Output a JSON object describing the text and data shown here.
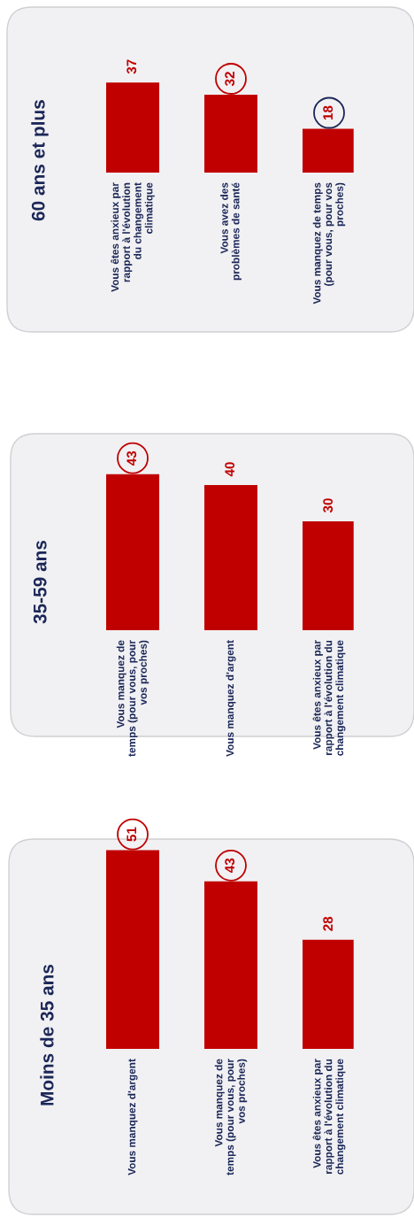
{
  "chart_data": [
    {
      "type": "bar",
      "title": "Moins de 35 ans",
      "categories": [
        "Vous manquez d'argent",
        "Vous manquez de\ntemps (pour vous, pour\nvos proches)",
        "Vous êtes anxieux par\nrapport à l'évolution du\nchangement climatique"
      ],
      "values": [
        51,
        43,
        28
      ],
      "color": "#c00000",
      "data_labels": true
    },
    {
      "type": "bar",
      "title": "35-59 ans",
      "categories": [
        "Vous manquez de\ntemps (pour vous, pour\nvos proches)",
        "Vous manquez d'argent",
        "Vous êtes anxieux par\nrapport à l'évolution du\nchangement climatique"
      ],
      "values": [
        43,
        40,
        30
      ],
      "color": "#c00000",
      "data_labels": true
    },
    {
      "type": "bar",
      "title": "60 ans et plus",
      "categories": [
        "Vous êtes anxieux par\nrapport à l'évolution\ndu changement\nclimatique",
        "Vous avez des\nproblèmes de santé",
        "Vous manquez de temps\n(pour vous, pour vos\nproches)"
      ],
      "values": [
        37,
        32,
        18
      ],
      "color": "#c00000",
      "data_labels": true
    }
  ]
}
